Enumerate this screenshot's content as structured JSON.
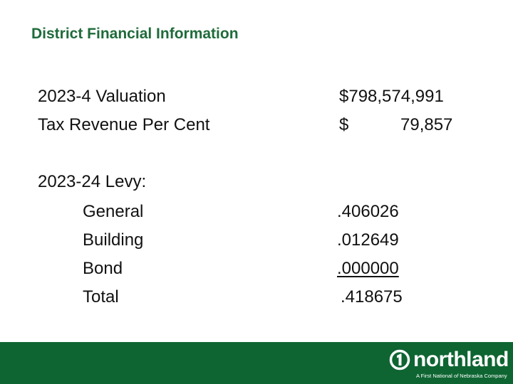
{
  "slide": {
    "title": "District Financial Information",
    "valuation_label": "2023-4 Valuation",
    "valuation_value": "$798,574,991",
    "tax_revenue_label": "Tax Revenue Per Cent",
    "tax_revenue_currency": "$",
    "tax_revenue_value": "79,857",
    "levy_heading": "2023-24 Levy:",
    "levy_items": [
      {
        "label": "General",
        "value": ".406026"
      },
      {
        "label": "Building",
        "value": ".012649"
      },
      {
        "label": "Bond",
        "value": ".000000"
      },
      {
        "label": "Total",
        "value": ".418675"
      }
    ]
  },
  "footer": {
    "brand": "northland",
    "tagline_before": "A First National ",
    "tagline_of": "of",
    "tagline_after": " Nebraska Company",
    "colors": {
      "bar": "#0e6532",
      "title": "#1f6b3a",
      "text": "#ffffff"
    }
  }
}
